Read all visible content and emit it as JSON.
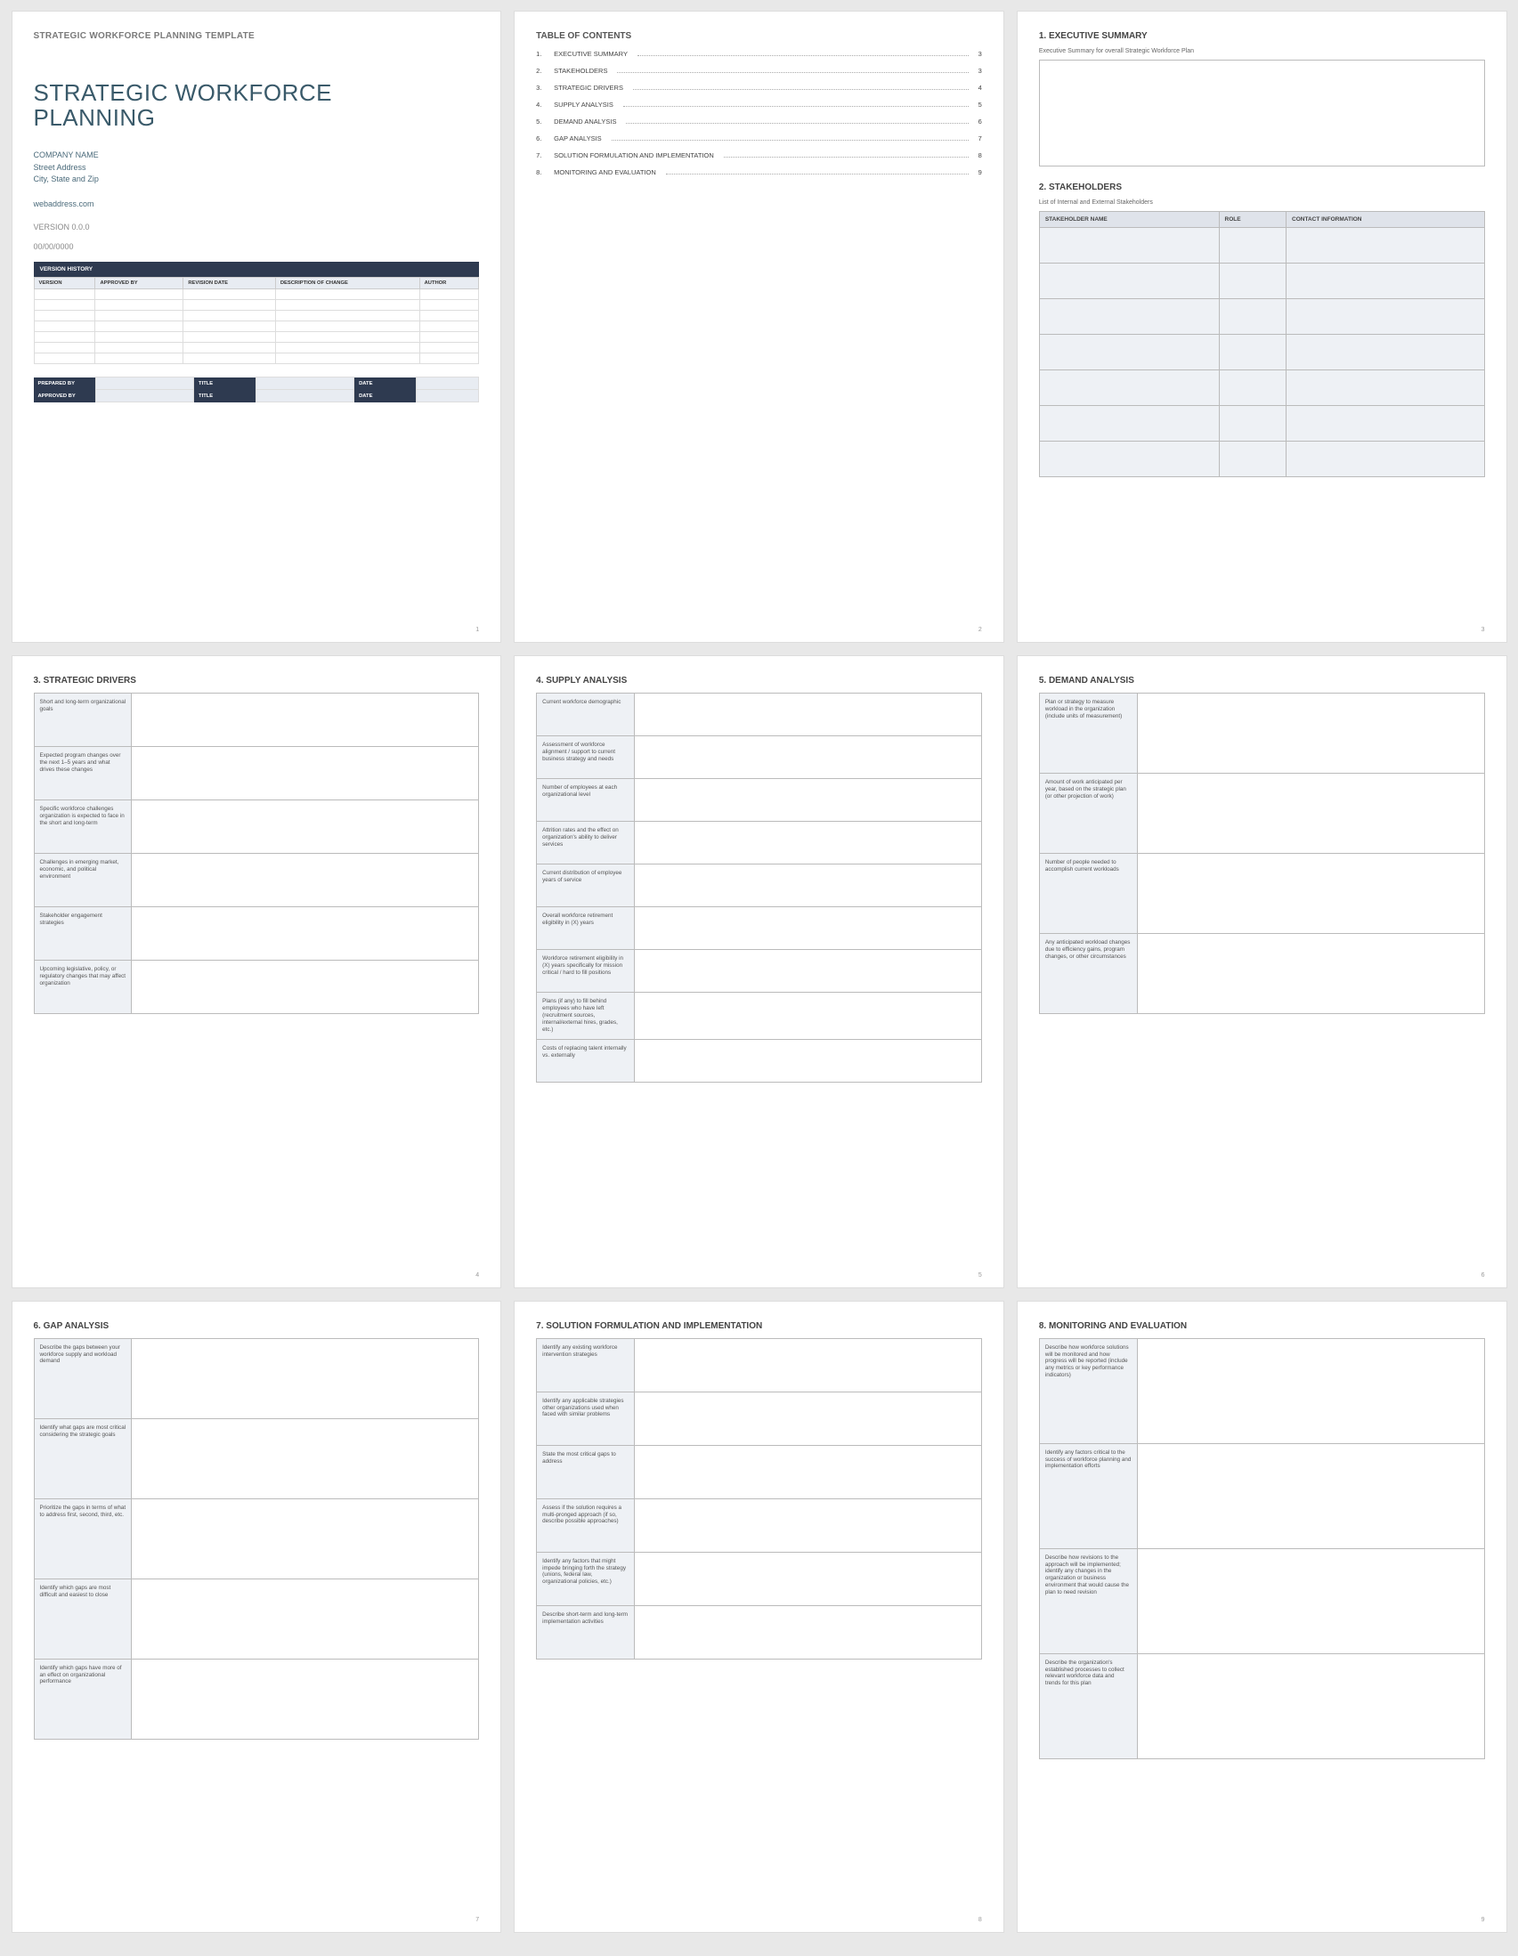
{
  "colors": {
    "page_bg": "#ffffff",
    "body_bg": "#e8e8e8",
    "dark_header": "#2e3a50",
    "light_fill": "#eef1f5",
    "th_fill": "#dfe3ea",
    "title_color": "#3a5a6a"
  },
  "doc": {
    "header": "STRATEGIC WORKFORCE PLANNING TEMPLATE",
    "title_line1": "STRATEGIC WORKFORCE",
    "title_line2": "PLANNING",
    "company": "COMPANY NAME",
    "street": "Street Address",
    "city": "City, State and Zip",
    "web": "webaddress.com",
    "version": "VERSION 0.0.0",
    "date": "00/00/0000"
  },
  "version_history": {
    "caption": "VERSION HISTORY",
    "cols": [
      "VERSION",
      "APPROVED BY",
      "REVISION DATE",
      "DESCRIPTION OF CHANGE",
      "AUTHOR"
    ],
    "blank_rows": 7
  },
  "signoff": {
    "prepared_by": "PREPARED BY",
    "approved_by": "APPROVED BY",
    "title": "TITLE",
    "date": "DATE"
  },
  "toc": {
    "title": "TABLE OF CONTENTS",
    "items": [
      {
        "n": "1.",
        "label": "EXECUTIVE SUMMARY",
        "pg": "3"
      },
      {
        "n": "2.",
        "label": "STAKEHOLDERS",
        "pg": "3"
      },
      {
        "n": "3.",
        "label": "STRATEGIC DRIVERS",
        "pg": "4"
      },
      {
        "n": "4.",
        "label": "SUPPLY ANALYSIS",
        "pg": "5"
      },
      {
        "n": "5.",
        "label": "DEMAND ANALYSIS",
        "pg": "6"
      },
      {
        "n": "6.",
        "label": "GAP ANALYSIS",
        "pg": "7"
      },
      {
        "n": "7.",
        "label": "SOLUTION FORMULATION AND IMPLEMENTATION",
        "pg": "8"
      },
      {
        "n": "8.",
        "label": "MONITORING AND EVALUATION",
        "pg": "9"
      }
    ]
  },
  "p3": {
    "h1": "1. EXECUTIVE SUMMARY",
    "sub1": "Executive Summary for overall Strategic Workforce Plan",
    "h2": "2. STAKEHOLDERS",
    "sub2": "List of Internal and External Stakeholders",
    "cols": [
      "STAKEHOLDER NAME",
      "ROLE",
      "CONTACT INFORMATION"
    ],
    "blank_rows": 7
  },
  "p4": {
    "h": "3. STRATEGIC DRIVERS",
    "rows": [
      "Short and long-term organizational goals",
      "Expected program changes over the next 1–5 years and what drives these changes",
      "Specific workforce challenges organization is expected to face in the short and long-term",
      "Challenges in emerging market, economic, and political environment",
      "Stakeholder engagement strategies",
      "Upcoming legislative, policy, or regulatory changes that may affect organization"
    ]
  },
  "p5": {
    "h": "4. SUPPLY ANALYSIS",
    "rows": [
      "Current workforce demographic",
      "Assessment of workforce alignment / support to current business strategy and needs",
      "Number of employees at each organizational level",
      "Attrition rates and the effect on organization's ability to deliver services",
      "Current distribution of employee years of service",
      "Overall workforce retirement eligibility in (X) years",
      "Workforce retirement eligibility in (X) years specifically for mission critical / hard to fill positions",
      "Plans (if any) to fill behind employees who have left (recruitment sources, internal/external hires, grades, etc.)",
      "Costs of replacing talent internally vs. externally"
    ]
  },
  "p6": {
    "h": "5. DEMAND ANALYSIS",
    "rows": [
      "Plan or strategy to measure workload in the organization (include units of measurement)",
      "Amount of work anticipated per year, based on the strategic plan (or other projection of work)",
      "Number of people needed to accomplish current workloads",
      "Any anticipated workload changes due to efficiency gains, program changes, or other circumstances"
    ]
  },
  "p7": {
    "h": "6. GAP ANALYSIS",
    "rows": [
      "Describe the gaps between your workforce supply and workload demand",
      "Identify what gaps are most critical considering the strategic goals",
      "Prioritize the gaps in terms of what to address first, second, third, etc.",
      "Identify which gaps are most difficult and easiest to close",
      "Identify which gaps have more of an effect on organizational performance"
    ]
  },
  "p8": {
    "h": "7. SOLUTION FORMULATION AND IMPLEMENTATION",
    "rows": [
      "Identify any existing workforce intervention strategies",
      "Identify any applicable strategies other organizations used when faced with similar problems",
      "State the most critical gaps to address",
      "Assess if the solution requires a multi-pronged approach (if so, describe possible approaches)",
      "Identify any factors that might impede bringing forth the strategy (unions, federal law, organizational policies, etc.)",
      "Describe short-term and long-term implementation activities"
    ]
  },
  "p9": {
    "h": "8. MONITORING AND EVALUATION",
    "rows": [
      "Describe how workforce solutions will be monitored and how progress will be reported (include any metrics or key performance indicators)",
      "Identify any factors critical to the success of workforce planning and implementation efforts",
      "Describe how revisions to the approach will be implemented; identify any changes in the organization or business environment that would cause the plan to need revision",
      "Describe the organization's established processes to collect relevant workforce data and trends for this plan"
    ]
  },
  "page_numbers": [
    "1",
    "2",
    "3",
    "4",
    "5",
    "6",
    "7",
    "8",
    "9"
  ]
}
